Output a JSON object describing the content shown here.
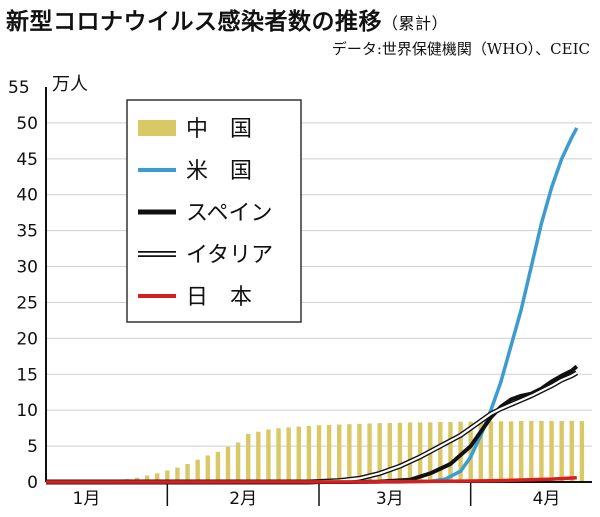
{
  "title": "新型コロナウイルス感染者数の推移",
  "title_suffix": "（累計）",
  "source": "データ:世界保健機関（WHO）、CEIC",
  "chart_data": {
    "type": "line",
    "y_unit": "万人",
    "ylim": [
      0,
      55
    ],
    "yticks": [
      0,
      5,
      10,
      15,
      20,
      25,
      30,
      35,
      40,
      45,
      50,
      55
    ],
    "xlim_days": [
      0,
      108
    ],
    "x_ticks": [
      {
        "label": "1月",
        "day": 8
      },
      {
        "label": "2月",
        "day": 39
      },
      {
        "label": "3月",
        "day": 68
      },
      {
        "label": "4月",
        "day": 99
      }
    ],
    "legend": [
      {
        "key": "china",
        "label": "中　国"
      },
      {
        "key": "us",
        "label": "米　国"
      },
      {
        "key": "spain",
        "label": "スペイン"
      },
      {
        "key": "italy",
        "label": "イタリア"
      },
      {
        "key": "japan",
        "label": "日　本"
      }
    ],
    "colors": {
      "china": "#d9c866",
      "us": "#3a9ccf",
      "spain": "#111111",
      "italy": "#111111",
      "japan": "#d62020"
    },
    "china_bars": [
      [
        10,
        0.05
      ],
      [
        12,
        0.1
      ],
      [
        14,
        0.2
      ],
      [
        16,
        0.4
      ],
      [
        18,
        0.6
      ],
      [
        20,
        0.9
      ],
      [
        22,
        1.2
      ],
      [
        24,
        1.6
      ],
      [
        26,
        2.0
      ],
      [
        28,
        2.5
      ],
      [
        30,
        3.1
      ],
      [
        32,
        3.7
      ],
      [
        34,
        4.2
      ],
      [
        36,
        4.9
      ],
      [
        38,
        5.5
      ],
      [
        40,
        6.7
      ],
      [
        42,
        7.0
      ],
      [
        44,
        7.3
      ],
      [
        46,
        7.5
      ],
      [
        48,
        7.6
      ],
      [
        50,
        7.7
      ],
      [
        52,
        7.8
      ],
      [
        54,
        7.9
      ],
      [
        56,
        7.95
      ],
      [
        58,
        8.0
      ],
      [
        60,
        8.05
      ],
      [
        62,
        8.1
      ],
      [
        64,
        8.15
      ],
      [
        66,
        8.2
      ],
      [
        68,
        8.2
      ],
      [
        70,
        8.25
      ],
      [
        72,
        8.3
      ],
      [
        74,
        8.3
      ],
      [
        76,
        8.3
      ],
      [
        78,
        8.35
      ],
      [
        80,
        8.35
      ],
      [
        82,
        8.4
      ],
      [
        84,
        8.4
      ],
      [
        86,
        8.4
      ],
      [
        88,
        8.45
      ],
      [
        90,
        8.45
      ],
      [
        92,
        8.45
      ],
      [
        94,
        8.5
      ],
      [
        96,
        8.5
      ],
      [
        98,
        8.5
      ],
      [
        100,
        8.5
      ],
      [
        102,
        8.5
      ],
      [
        104,
        8.5
      ],
      [
        106,
        8.5
      ]
    ],
    "series": [
      {
        "key": "us",
        "points": [
          [
            0,
            0
          ],
          [
            70,
            0
          ],
          [
            76,
            0.1
          ],
          [
            79,
            0.4
          ],
          [
            82,
            1.5
          ],
          [
            84,
            3.5
          ],
          [
            86,
            6.5
          ],
          [
            88,
            10
          ],
          [
            90,
            14
          ],
          [
            92,
            19
          ],
          [
            94,
            24
          ],
          [
            96,
            30
          ],
          [
            98,
            36
          ],
          [
            100,
            41
          ],
          [
            102,
            45
          ],
          [
            104,
            48
          ],
          [
            105,
            49.3
          ]
        ]
      },
      {
        "key": "spain",
        "points": [
          [
            0,
            0
          ],
          [
            60,
            0
          ],
          [
            66,
            0.05
          ],
          [
            72,
            0.3
          ],
          [
            76,
            1.2
          ],
          [
            80,
            2.5
          ],
          [
            84,
            5
          ],
          [
            86,
            7
          ],
          [
            88,
            9
          ],
          [
            90,
            10.5
          ],
          [
            92,
            11.5
          ],
          [
            94,
            12
          ],
          [
            96,
            12.3
          ],
          [
            98,
            13
          ],
          [
            100,
            14
          ],
          [
            102,
            14.8
          ],
          [
            104,
            15.5
          ],
          [
            105,
            16.1
          ]
        ]
      },
      {
        "key": "italy",
        "points": [
          [
            0,
            0
          ],
          [
            52,
            0
          ],
          [
            58,
            0.2
          ],
          [
            62,
            0.5
          ],
          [
            66,
            1.2
          ],
          [
            70,
            2.2
          ],
          [
            74,
            3.5
          ],
          [
            78,
            5
          ],
          [
            82,
            6.5
          ],
          [
            86,
            8.5
          ],
          [
            88,
            9.5
          ],
          [
            90,
            10.2
          ],
          [
            92,
            10.8
          ],
          [
            94,
            11.4
          ],
          [
            96,
            12
          ],
          [
            98,
            12.7
          ],
          [
            100,
            13.4
          ],
          [
            102,
            14.2
          ],
          [
            104,
            14.8
          ],
          [
            105,
            15.2
          ]
        ]
      },
      {
        "key": "japan",
        "points": [
          [
            0,
            0
          ],
          [
            60,
            0.02
          ],
          [
            80,
            0.1
          ],
          [
            90,
            0.2
          ],
          [
            100,
            0.4
          ],
          [
            105,
            0.6
          ]
        ]
      }
    ]
  }
}
